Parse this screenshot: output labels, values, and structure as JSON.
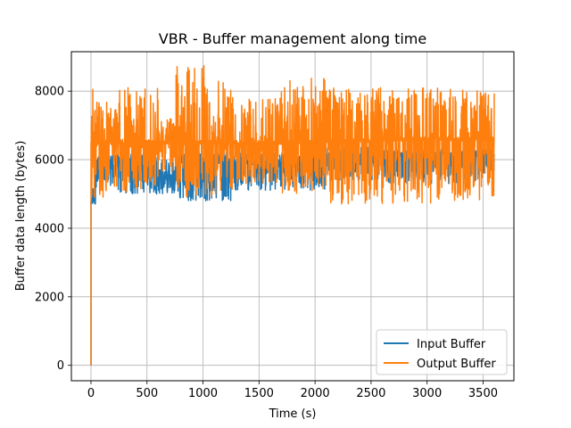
{
  "chart_data": {
    "type": "line",
    "title": "VBR - Buffer management along time",
    "xlabel": "Time (s)",
    "ylabel": "Buffer data length (bytes)",
    "xlim": [
      -175,
      3775
    ],
    "ylim": [
      -450,
      9150
    ],
    "xticks": [
      0,
      500,
      1000,
      1500,
      2000,
      2500,
      3000,
      3500
    ],
    "yticks": [
      0,
      2000,
      4000,
      6000,
      8000
    ],
    "grid": true,
    "legend_position": "lower-right",
    "colors": {
      "input": "#1f77b4",
      "output": "#ff7f0e",
      "grid": "#b0b0b0"
    },
    "series": [
      {
        "name": "Input Buffer",
        "color": "#1f77b4",
        "segments": [
          {
            "x0": 0,
            "x1": 40,
            "base": 4800,
            "lo": 4700,
            "hi": 5200
          },
          {
            "x0": 40,
            "x1": 220,
            "base": 5800,
            "lo": 5200,
            "hi": 6200
          },
          {
            "x0": 220,
            "x1": 600,
            "base": 5950,
            "lo": 5000,
            "hi": 6200
          },
          {
            "x0": 600,
            "x1": 760,
            "base": 5500,
            "lo": 5000,
            "hi": 6000
          },
          {
            "x0": 760,
            "x1": 1250,
            "base": 5950,
            "lo": 4800,
            "hi": 6200
          },
          {
            "x0": 1250,
            "x1": 1700,
            "base": 5900,
            "lo": 5100,
            "hi": 6200
          },
          {
            "x0": 1700,
            "x1": 2100,
            "base": 5950,
            "lo": 5100,
            "hi": 6200
          },
          {
            "x0": 2100,
            "x1": 2600,
            "base": 6100,
            "lo": 5400,
            "hi": 6400
          },
          {
            "x0": 2600,
            "x1": 3100,
            "base": 6150,
            "lo": 5300,
            "hi": 6300
          },
          {
            "x0": 3100,
            "x1": 3600,
            "base": 6150,
            "lo": 5300,
            "hi": 6300
          }
        ]
      },
      {
        "name": "Output Buffer",
        "color": "#ff7f0e",
        "segments": [
          {
            "x0": 0,
            "x1": 40,
            "base": 6500,
            "lo": 4800,
            "hi": 8150
          },
          {
            "x0": 40,
            "x1": 220,
            "base": 6500,
            "lo": 4900,
            "hi": 7900
          },
          {
            "x0": 220,
            "x1": 460,
            "base": 6500,
            "lo": 5000,
            "hi": 8200
          },
          {
            "x0": 460,
            "x1": 600,
            "base": 6500,
            "lo": 5200,
            "hi": 8100
          },
          {
            "x0": 600,
            "x1": 760,
            "base": 6500,
            "lo": 5600,
            "hi": 7200
          },
          {
            "x0": 760,
            "x1": 1100,
            "base": 6500,
            "lo": 4900,
            "hi": 8750
          },
          {
            "x0": 1100,
            "x1": 1300,
            "base": 6500,
            "lo": 5000,
            "hi": 8300
          },
          {
            "x0": 1300,
            "x1": 1700,
            "base": 6500,
            "lo": 5300,
            "hi": 7800
          },
          {
            "x0": 1700,
            "x1": 2100,
            "base": 6500,
            "lo": 5000,
            "hi": 8400
          },
          {
            "x0": 2100,
            "x1": 2600,
            "base": 6550,
            "lo": 4700,
            "hi": 8100
          },
          {
            "x0": 2600,
            "x1": 3100,
            "base": 6600,
            "lo": 4700,
            "hi": 8100
          },
          {
            "x0": 3100,
            "x1": 3600,
            "base": 6600,
            "lo": 4800,
            "hi": 8100
          }
        ]
      }
    ]
  }
}
